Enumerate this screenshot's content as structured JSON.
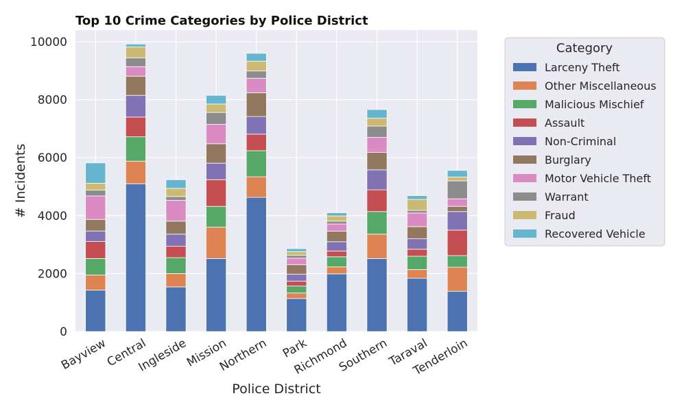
{
  "chart_data": {
    "type": "bar",
    "stacked": true,
    "title": "Top 10 Crime Categories by Police District",
    "xlabel": "Police District",
    "ylabel": "# Incidents",
    "ylim": [
      0,
      10400
    ],
    "yticks": [
      0,
      2000,
      4000,
      6000,
      8000,
      10000
    ],
    "grid": true,
    "legend_title": "Category",
    "legend_position": "outside-right",
    "categories": [
      "Bayview",
      "Central",
      "Ingleside",
      "Mission",
      "Northern",
      "Park",
      "Richmond",
      "Southern",
      "Taraval",
      "Tenderloin"
    ],
    "series": [
      {
        "name": "Larceny Theft",
        "color": "#4c72b0",
        "values": [
          1430,
          5100,
          1540,
          2520,
          4630,
          1140,
          1990,
          2520,
          1840,
          1390
        ]
      },
      {
        "name": "Other Miscellaneous",
        "color": "#dd8452",
        "values": [
          520,
          780,
          460,
          1080,
          710,
          190,
          240,
          840,
          300,
          830
        ]
      },
      {
        "name": "Malicious Mischief",
        "color": "#55a868",
        "values": [
          570,
          840,
          550,
          720,
          900,
          240,
          350,
          780,
          460,
          400
        ]
      },
      {
        "name": "Assault",
        "color": "#c44e52",
        "values": [
          590,
          680,
          390,
          920,
          570,
          170,
          200,
          750,
          240,
          880
        ]
      },
      {
        "name": "Non-Criminal",
        "color": "#8172b3",
        "values": [
          360,
          750,
          420,
          570,
          610,
          240,
          320,
          690,
          360,
          640
        ]
      },
      {
        "name": "Burglary",
        "color": "#937860",
        "values": [
          400,
          660,
          450,
          670,
          820,
          330,
          360,
          600,
          420,
          180
        ]
      },
      {
        "name": "Motor Vehicle Theft",
        "color": "#da8bc3",
        "values": [
          810,
          330,
          720,
          670,
          500,
          220,
          250,
          520,
          470,
          260
        ]
      },
      {
        "name": "Warrant",
        "color": "#8c8c8c",
        "values": [
          200,
          300,
          130,
          410,
          250,
          100,
          100,
          390,
          90,
          620
        ]
      },
      {
        "name": "Fraud",
        "color": "#ccb974",
        "values": [
          240,
          380,
          280,
          290,
          340,
          130,
          180,
          270,
          380,
          130
        ]
      },
      {
        "name": "Recovered Vehicle",
        "color": "#64b5cd",
        "values": [
          700,
          100,
          300,
          300,
          270,
          100,
          110,
          300,
          130,
          230
        ]
      }
    ]
  }
}
